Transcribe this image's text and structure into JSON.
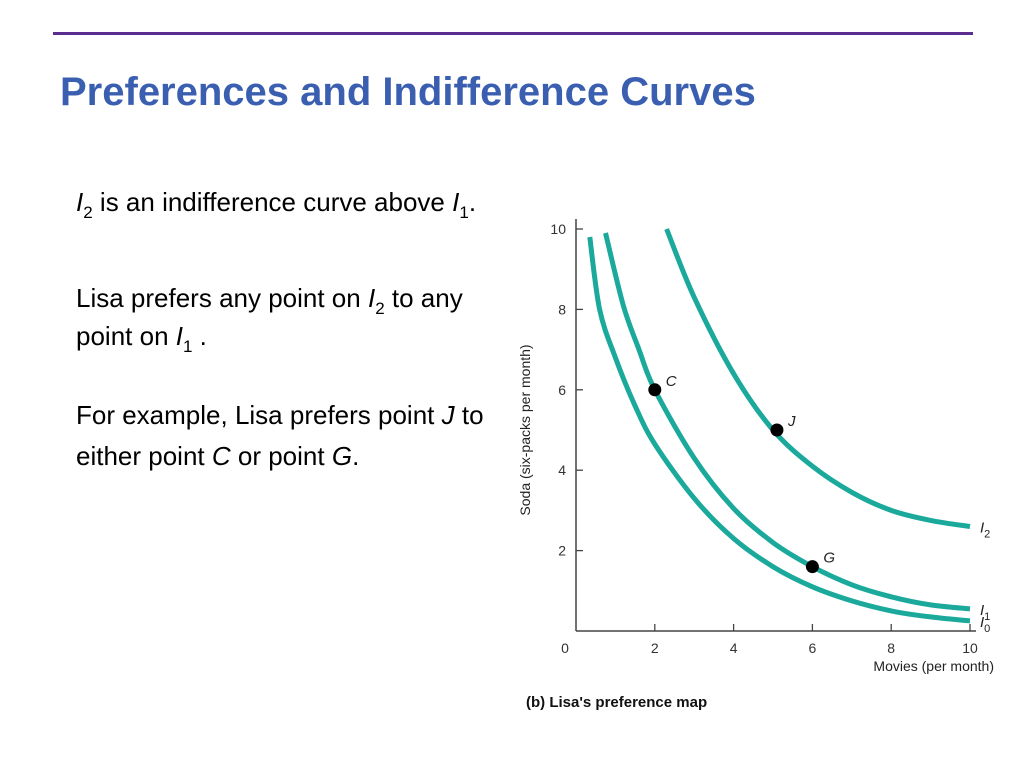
{
  "title": "Preferences and Indifference Curves",
  "text": {
    "p1": {
      "i2_letter": "I",
      "i2_sub": "2",
      "mid": " is an indifference curve above ",
      "i1_letter": "I",
      "i1_sub": "1",
      "end": "."
    },
    "p2": {
      "start": "Lisa prefers any point on ",
      "i2_letter": "I",
      "i2_sub": "2",
      "mid": " to any point on ",
      "i1_letter": "I",
      "i1_sub": "1",
      "end": " ."
    },
    "p3": {
      "start": "For example, Lisa prefers point ",
      "j": "J",
      "mid": " to either point ",
      "c": "C",
      "or": " or point ",
      "g": "G",
      "end": "."
    }
  },
  "colors": {
    "title": "#3b5fb0",
    "rule": "#5b2d8e",
    "curve": "#1aa99b",
    "point": "#000000"
  },
  "chart_data": {
    "type": "line",
    "xlabel": "Movies (per month)",
    "ylabel": "Soda (six-packs per month)",
    "caption": "(b) Lisa's preference map",
    "xlim": [
      0,
      10
    ],
    "ylim": [
      0,
      10
    ],
    "xticks": [
      0,
      2,
      4,
      6,
      8,
      10
    ],
    "yticks": [
      2,
      4,
      6,
      8,
      10
    ],
    "grid": false,
    "series": [
      {
        "name": "I0",
        "label_letter": "I",
        "label_sub": "0",
        "points": [
          [
            0.35,
            9.8
          ],
          [
            0.6,
            8.0
          ],
          [
            1.0,
            6.8
          ],
          [
            1.5,
            5.6
          ],
          [
            2.0,
            4.65
          ],
          [
            3.0,
            3.3
          ],
          [
            4.0,
            2.3
          ],
          [
            5.0,
            1.6
          ],
          [
            6.0,
            1.1
          ],
          [
            7.0,
            0.75
          ],
          [
            8.0,
            0.5
          ],
          [
            9.0,
            0.35
          ],
          [
            10.0,
            0.25
          ]
        ]
      },
      {
        "name": "I1",
        "label_letter": "I",
        "label_sub": "1",
        "points": [
          [
            0.75,
            9.9
          ],
          [
            1.2,
            8.1
          ],
          [
            1.6,
            7.0
          ],
          [
            2.0,
            6.0
          ],
          [
            3.0,
            4.3
          ],
          [
            4.0,
            3.05
          ],
          [
            5.0,
            2.2
          ],
          [
            6.0,
            1.6
          ],
          [
            7.0,
            1.15
          ],
          [
            8.0,
            0.85
          ],
          [
            9.0,
            0.65
          ],
          [
            10.0,
            0.55
          ]
        ]
      },
      {
        "name": "I2",
        "label_letter": "I",
        "label_sub": "2",
        "points": [
          [
            2.3,
            10.0
          ],
          [
            3.0,
            8.3
          ],
          [
            4.0,
            6.4
          ],
          [
            5.0,
            5.0
          ],
          [
            6.0,
            4.1
          ],
          [
            7.0,
            3.45
          ],
          [
            8.0,
            3.0
          ],
          [
            9.0,
            2.75
          ],
          [
            10.0,
            2.6
          ]
        ]
      }
    ],
    "points": [
      {
        "label": "C",
        "x": 2.0,
        "y": 6.0
      },
      {
        "label": "J",
        "x": 5.1,
        "y": 5.0
      },
      {
        "label": "G",
        "x": 6.0,
        "y": 1.6
      }
    ]
  }
}
